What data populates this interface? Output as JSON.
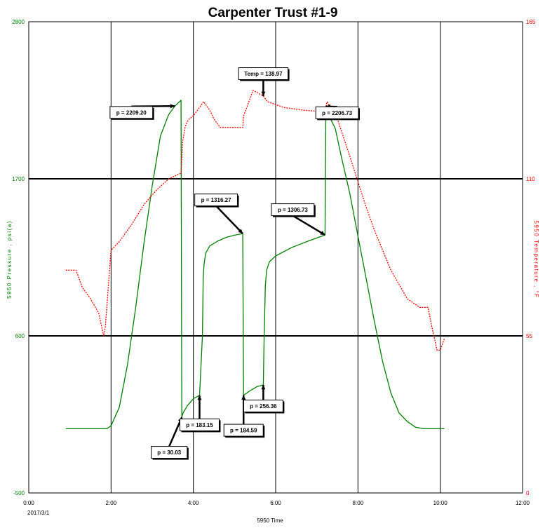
{
  "chart_data": {
    "type": "line",
    "title": "Carpenter Trust #1-9",
    "xlabel": "5950 Time",
    "ylabel_left": "5950 Pressure , psi(a)",
    "ylabel_right": "5950 Temperature , °F",
    "x_ticks": [
      "0:00",
      "2:00",
      "4:00",
      "6:00",
      "8:00",
      "10:00",
      "12:00"
    ],
    "x_date_label": "2017/3/1",
    "xlim_hours": [
      0,
      12
    ],
    "y_left_ticks": [
      "2800",
      "1700",
      "600",
      "-500"
    ],
    "y_left_lim": [
      -500,
      2800
    ],
    "y_right_ticks": [
      "165",
      "110",
      "55",
      "0"
    ],
    "y_right_lim": [
      0,
      165
    ],
    "grid": true,
    "colors": {
      "pressure": "#008000",
      "temperature": "#ff0000",
      "grid": "#000000",
      "callout_arrow": "#000000"
    },
    "series": [
      {
        "name": "Pressure",
        "axis": "left",
        "color": "#008000",
        "x": [
          0.9,
          1.9,
          2.0,
          2.2,
          2.4,
          2.6,
          2.8,
          3.0,
          3.2,
          3.4,
          3.55,
          3.7,
          3.72,
          3.75,
          3.85,
          4.0,
          4.15,
          4.22,
          4.24,
          4.26,
          4.3,
          4.4,
          4.6,
          4.8,
          5.0,
          5.2,
          5.22,
          5.25,
          5.4,
          5.55,
          5.7,
          5.72,
          5.75,
          5.78,
          5.85,
          6.0,
          6.4,
          6.8,
          7.2,
          7.22,
          7.25,
          7.45,
          7.6,
          7.8,
          8.0,
          8.2,
          8.4,
          8.6,
          8.8,
          9.0,
          9.2,
          9.4,
          9.6,
          9.8,
          10.0,
          10.1
        ],
        "y": [
          -50,
          -50,
          -30,
          100,
          400,
          800,
          1250,
          1650,
          2000,
          2150,
          2209.2,
          2250,
          30.03,
          60,
          110,
          160,
          183.15,
          600,
          1000,
          1100,
          1180,
          1230,
          1265,
          1290,
          1305,
          1316.27,
          184.59,
          190,
          220,
          245,
          256.36,
          600,
          950,
          1060,
          1120,
          1160,
          1220,
          1265,
          1306.73,
          2206.73,
          2170,
          2050,
          1850,
          1600,
          1300,
          1000,
          700,
          420,
          200,
          60,
          0,
          -40,
          -50,
          -50,
          -50,
          -50
        ]
      },
      {
        "name": "Temperature",
        "axis": "right",
        "color": "#ff0000",
        "x": [
          0.9,
          1.15,
          1.3,
          1.5,
          1.7,
          1.82,
          1.86,
          2.0,
          2.2,
          2.5,
          2.8,
          3.1,
          3.4,
          3.7,
          3.74,
          3.8,
          3.85,
          3.9,
          4.0,
          4.1,
          4.25,
          4.4,
          4.5,
          4.65,
          5.0,
          5.2,
          5.22,
          5.3,
          5.45,
          5.7,
          5.8,
          6.2,
          6.7,
          7.2,
          7.25,
          7.5,
          7.8,
          8.0,
          8.2,
          8.4,
          8.6,
          8.8,
          9.0,
          9.2,
          9.5,
          9.7,
          9.8,
          9.92,
          10.0,
          10.1
        ],
        "y": [
          78,
          78,
          72,
          68,
          63,
          55,
          58,
          85,
          88,
          94,
          101,
          106,
          110,
          112,
          123,
          128,
          130,
          131,
          132,
          134,
          137,
          134,
          131,
          128,
          128,
          128,
          132,
          135,
          141,
          139,
          137,
          135,
          134,
          133.5,
          137,
          131,
          118,
          109,
          100,
          92,
          85,
          78,
          73,
          68,
          65,
          65,
          58,
          50,
          50,
          54
        ]
      }
    ],
    "annotations": [
      {
        "text": "p = 2209.20",
        "x": 3.55,
        "y": 2209.2,
        "axis": "left"
      },
      {
        "text": "p = 30.03",
        "x": 3.72,
        "y": 30.03,
        "axis": "left"
      },
      {
        "text": "p = 183.15",
        "x": 4.15,
        "y": 183.15,
        "axis": "left"
      },
      {
        "text": "p = 1316.27",
        "x": 5.2,
        "y": 1316.27,
        "axis": "left"
      },
      {
        "text": "p = 184.59",
        "x": 5.22,
        "y": 184.59,
        "axis": "left"
      },
      {
        "text": "p = 256.36",
        "x": 5.7,
        "y": 256.36,
        "axis": "left"
      },
      {
        "text": "p = 1306.73",
        "x": 7.2,
        "y": 1306.73,
        "axis": "left"
      },
      {
        "text": "p = 2206.73",
        "x": 7.22,
        "y": 2206.73,
        "axis": "left"
      },
      {
        "text": "Temp = 138.97",
        "x": 5.7,
        "y": 138.97,
        "axis": "right"
      }
    ]
  }
}
